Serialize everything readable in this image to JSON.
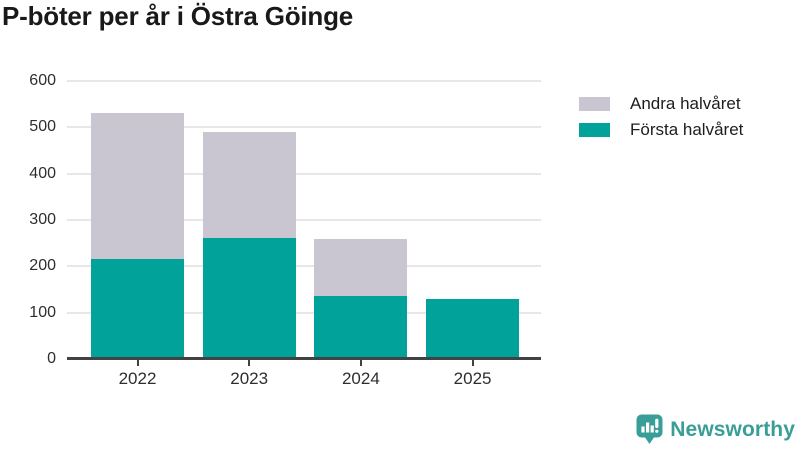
{
  "title": "P-böter per år i Östra Göinge",
  "chart_data": {
    "type": "bar",
    "stacked": true,
    "title": "P-böter per år i Östra Göinge",
    "categories": [
      "2022",
      "2023",
      "2024",
      "2025"
    ],
    "series": [
      {
        "name": "Första halvåret",
        "color": "#00a29a",
        "values": [
          215,
          262,
          135,
          130
        ]
      },
      {
        "name": "Andra halvåret",
        "color": "#c9c6d1",
        "values": [
          315,
          228,
          123,
          0
        ]
      }
    ],
    "totals": [
      530,
      490,
      258,
      130
    ],
    "xlabel": "",
    "ylabel": "",
    "ylim": [
      0,
      600
    ],
    "yticks": [
      0,
      100,
      200,
      300,
      400,
      500,
      600
    ],
    "grid": true,
    "legend_position": "top-right"
  },
  "legend": {
    "items": [
      {
        "label": "Andra halvåret",
        "color": "#c9c6d1"
      },
      {
        "label": "Första halvåret",
        "color": "#00a29a"
      }
    ]
  },
  "footer": {
    "brand": "Newsworthy"
  },
  "colors": {
    "accent_teal": "#00a29a",
    "secondary_gray": "#c9c6d1",
    "brand_teal": "#3a9e98",
    "axis": "#424242",
    "gridline": "#e7e7e7",
    "title_text": "#191919",
    "tick_text": "#2e2e2e"
  }
}
